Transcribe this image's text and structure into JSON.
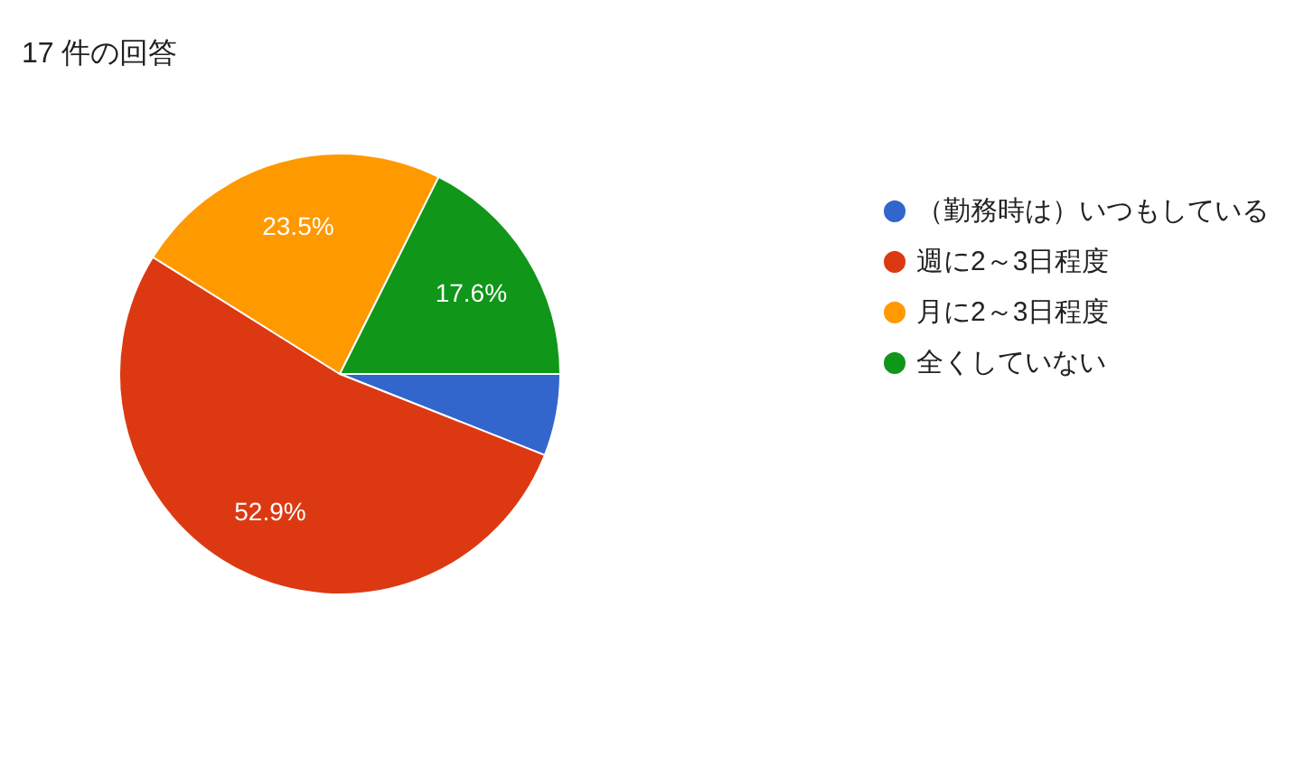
{
  "chart_data": {
    "type": "pie",
    "title": "17 件の回答",
    "categories": [
      "（勤務時は）いつもしている",
      "週に2～3日程度",
      "月に2～3日程度",
      "全くしていない"
    ],
    "values": [
      6.0,
      52.9,
      23.5,
      17.6
    ],
    "colors": [
      "#3366cc",
      "#dc3912",
      "#ff9900",
      "#109618"
    ],
    "value_labels": [
      null,
      "52.9%",
      "23.5%",
      "17.6%"
    ],
    "legend": "right"
  }
}
